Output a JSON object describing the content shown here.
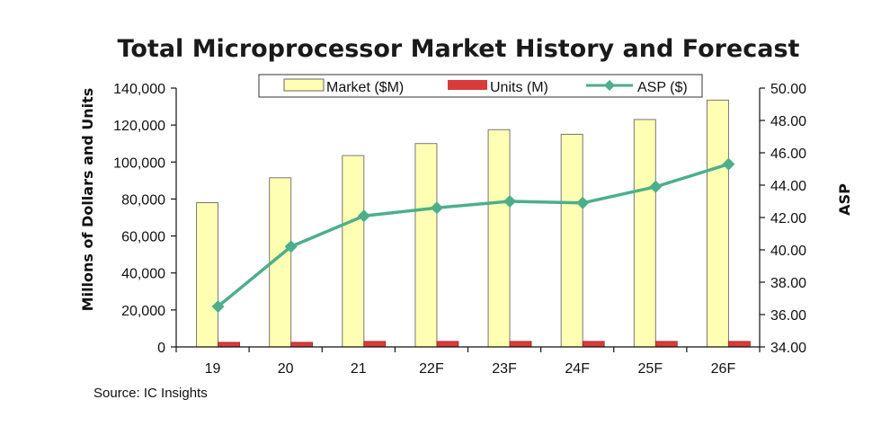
{
  "chart_data": {
    "type": "bar",
    "title": "Total Microprocessor Market History and Forecast",
    "categories": [
      "19",
      "20",
      "21",
      "22F",
      "23F",
      "24F",
      "25F",
      "26F"
    ],
    "y_left": {
      "label": "Millons of Dollars and Units",
      "range": [
        0,
        140000
      ],
      "ticks": [
        "0",
        "20,000",
        "40,000",
        "60,000",
        "80,000",
        "100,000",
        "120,000",
        "140,000"
      ]
    },
    "y_right": {
      "label": "ASP",
      "range": [
        34,
        50
      ],
      "ticks": [
        "34.00",
        "36.00",
        "38.00",
        "40.00",
        "42.00",
        "44.00",
        "46.00",
        "48.00",
        "50.00"
      ]
    },
    "series": [
      {
        "name": "Market ($M)",
        "kind": "bar",
        "axis": "left",
        "color": "#FFFFB3",
        "values": [
          78000,
          91500,
          103500,
          110000,
          117500,
          115000,
          123000,
          133500
        ]
      },
      {
        "name": "Units (M)",
        "kind": "bar",
        "axis": "left",
        "color": "#D93A3A",
        "values": [
          2500,
          2500,
          3000,
          3000,
          3000,
          3000,
          3000,
          3000
        ]
      },
      {
        "name": "ASP ($)",
        "kind": "line",
        "axis": "right",
        "color": "#4DAF8A",
        "values": [
          36.5,
          40.2,
          42.1,
          42.6,
          43.0,
          42.9,
          43.9,
          45.3
        ]
      }
    ],
    "grid": false,
    "legend": "top",
    "source": "Source:  IC Insights"
  }
}
